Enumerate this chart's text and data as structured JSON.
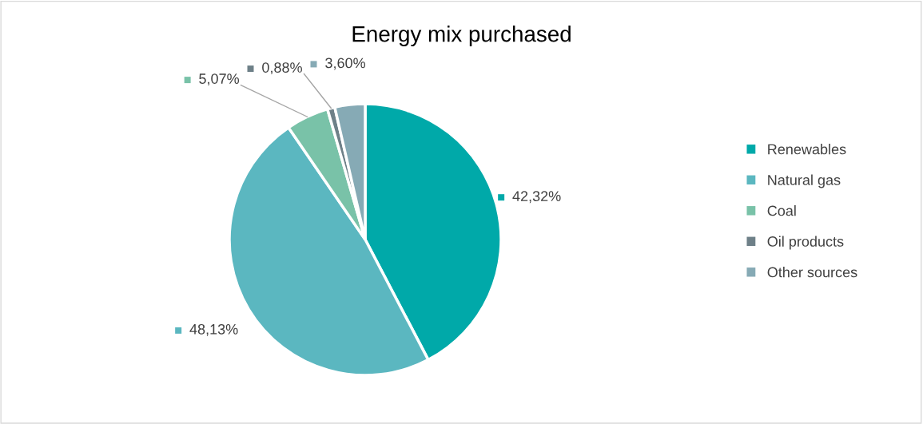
{
  "chart_data": {
    "type": "pie",
    "title": "Energy mix purchased",
    "categories": [
      "Renewables",
      "Natural gas",
      "Coal",
      "Oil products",
      "Other sources"
    ],
    "values": [
      42.32,
      48.13,
      5.07,
      0.88,
      3.6
    ],
    "value_labels": [
      "42,32%",
      "48,13%",
      "5,07%",
      "0,88%",
      "3,60%"
    ],
    "colors": [
      "#00a9a9",
      "#5bb7c0",
      "#79c2a8",
      "#6e8088",
      "#86aab5"
    ],
    "legend": "right"
  }
}
